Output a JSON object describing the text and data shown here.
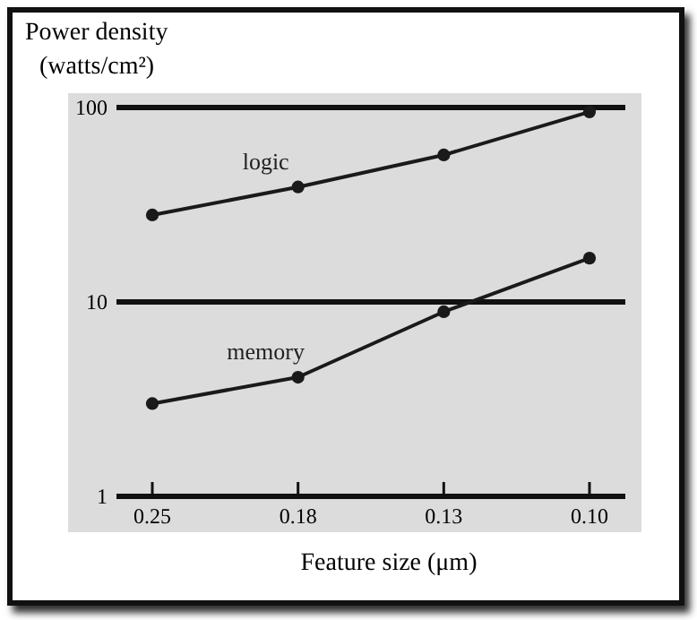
{
  "chart_data": {
    "type": "line",
    "ylabel": "Power density (watts/cm²)",
    "xlabel": "Feature size (μm)",
    "categories": [
      "0.25",
      "0.18",
      "0.13",
      "0.10"
    ],
    "series": [
      {
        "name": "logic",
        "color": "#1a1a1a",
        "values": [
          28,
          39,
          57,
          95
        ]
      },
      {
        "name": "memory",
        "color": "#1a1a1a",
        "values": [
          3.0,
          4.1,
          8.9,
          16.8
        ]
      }
    ],
    "log": true,
    "ylim": [
      1,
      100
    ],
    "yticks": [
      1,
      10,
      100
    ],
    "grid": "y",
    "marker": "circle",
    "line_style": "solid"
  }
}
